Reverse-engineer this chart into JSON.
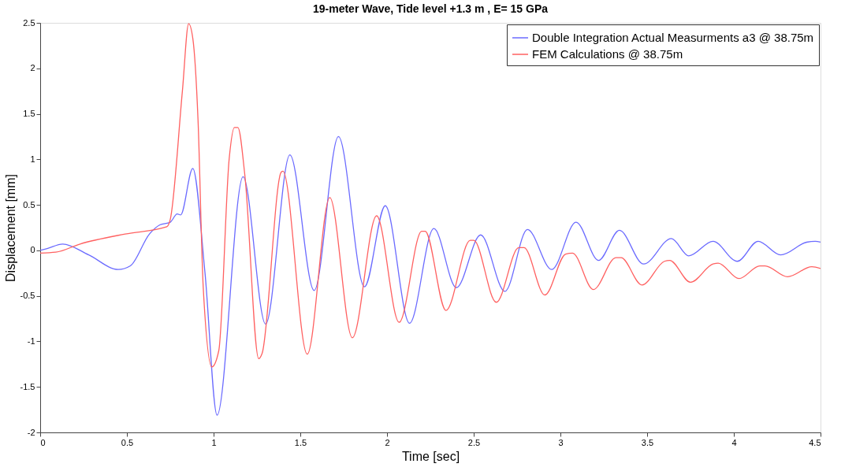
{
  "chart_data": {
    "type": "line",
    "title": "19-meter Wave, Tide level +1.3 m , E= 15 GPa",
    "xlabel": "Time [sec]",
    "ylabel": "Displacement [mm]",
    "xlim": [
      0,
      4.5
    ],
    "xticks": [
      0,
      0.5,
      1,
      1.5,
      2,
      2.5,
      3,
      3.5,
      4,
      4.5
    ],
    "ylim": [
      -2,
      2.5
    ],
    "yticks": [
      -2,
      -1.5,
      -1,
      -0.5,
      0,
      0.5,
      1,
      1.5,
      2,
      2.5
    ],
    "grid": false,
    "legend": "top right",
    "marker": "none",
    "line_style": "solid",
    "series": [
      {
        "name": "Double Integration Actual Measurments a3 @ 38.75m",
        "color": "#6b6bff",
        "x": [
          0,
          0.04,
          0.13,
          0.28,
          0.45,
          0.52,
          0.63,
          0.69,
          0.75,
          0.79,
          0.81,
          0.88,
          0.95,
          1.02,
          1.17,
          1.3,
          1.44,
          1.58,
          1.72,
          1.87,
          1.99,
          2.13,
          2.27,
          2.4,
          2.54,
          2.68,
          2.81,
          2.95,
          3.09,
          3.22,
          3.34,
          3.48,
          3.64,
          3.74,
          3.88,
          4.02,
          4.14,
          4.27,
          4.42,
          4.47,
          4.5
        ],
        "values": [
          0.0,
          0.02,
          0.07,
          -0.05,
          -0.21,
          -0.17,
          0.18,
          0.28,
          0.31,
          0.4,
          0.39,
          0.9,
          -0.24,
          -1.81,
          0.81,
          -0.81,
          1.05,
          -0.44,
          1.25,
          -0.4,
          0.49,
          -0.8,
          0.24,
          -0.41,
          0.17,
          -0.45,
          0.23,
          -0.21,
          0.31,
          -0.11,
          0.22,
          -0.15,
          0.13,
          -0.06,
          0.1,
          -0.12,
          0.1,
          -0.05,
          0.09,
          0.1,
          0.09
        ]
      },
      {
        "name": "FEM Calculations @ 38.75m",
        "color": "#ff6161",
        "x": [
          0,
          0.09,
          0.23,
          0.49,
          0.73,
          0.75,
          0.82,
          0.856,
          0.88,
          0.91,
          0.94,
          0.99,
          1.03,
          1.09,
          1.12,
          1.14,
          1.18,
          1.26,
          1.28,
          1.39,
          1.4,
          1.54,
          1.67,
          1.8,
          1.94,
          2.07,
          2.2,
          2.22,
          2.34,
          2.48,
          2.5,
          2.63,
          2.76,
          2.79,
          2.91,
          3.03,
          3.07,
          3.19,
          3.32,
          3.35,
          3.47,
          3.6,
          3.63,
          3.75,
          3.88,
          3.91,
          4.03,
          4.15,
          4.18,
          4.31,
          4.45,
          4.5
        ],
        "values": [
          -0.03,
          -0.02,
          0.07,
          0.18,
          0.26,
          0.34,
          1.75,
          2.49,
          2.33,
          1.44,
          -0.4,
          -1.28,
          -1.1,
          1.01,
          1.35,
          1.35,
          0.83,
          -1.19,
          -1.13,
          0.86,
          0.87,
          -1.14,
          0.58,
          -0.96,
          0.38,
          -0.79,
          0.21,
          0.21,
          -0.66,
          0.11,
          0.11,
          -0.57,
          0.03,
          0.03,
          -0.49,
          -0.04,
          -0.03,
          -0.43,
          -0.08,
          -0.08,
          -0.38,
          -0.12,
          -0.11,
          -0.35,
          -0.15,
          -0.14,
          -0.31,
          -0.17,
          -0.17,
          -0.29,
          -0.18,
          -0.2
        ]
      }
    ]
  }
}
